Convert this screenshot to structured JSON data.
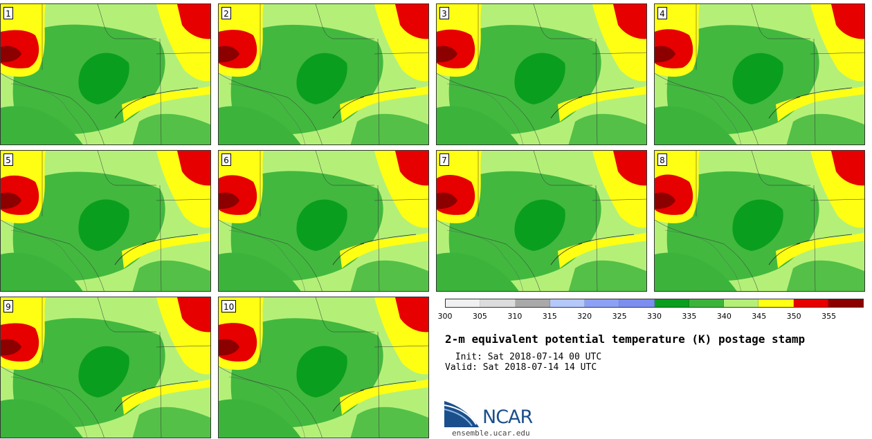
{
  "panels": [
    {
      "label": "1"
    },
    {
      "label": "2"
    },
    {
      "label": "3"
    },
    {
      "label": "4"
    },
    {
      "label": "5"
    },
    {
      "label": "6"
    },
    {
      "label": "7"
    },
    {
      "label": "8"
    },
    {
      "label": "9"
    },
    {
      "label": "10"
    }
  ],
  "colorbar": {
    "colors": [
      "#f0f0f0",
      "#dcdcdc",
      "#a9a9a9",
      "#b4c8fa",
      "#8ca0f5",
      "#7c8ef0",
      "#0a9e1e",
      "#3cb43c",
      "#b4f078",
      "#ffff14",
      "#e60000",
      "#8c0000"
    ],
    "ticks": [
      "300",
      "305",
      "310",
      "315",
      "320",
      "325",
      "330",
      "335",
      "340",
      "345",
      "350",
      "355"
    ]
  },
  "title": "2-m equivalent potential temperature (K) postage stamp",
  "init_line": " Init: Sat 2018-07-14 00 UTC",
  "valid_line": "Valid: Sat 2018-07-14 14 UTC",
  "logo": {
    "text": "NCAR",
    "url": "ensemble.ucar.edu"
  },
  "map_colors": {
    "dark_green": "#0a9e1e",
    "mid_green": "#3cb43c",
    "light_green": "#b4f078",
    "yellow": "#ffff14",
    "red": "#e60000",
    "dark_red": "#8c0000"
  }
}
